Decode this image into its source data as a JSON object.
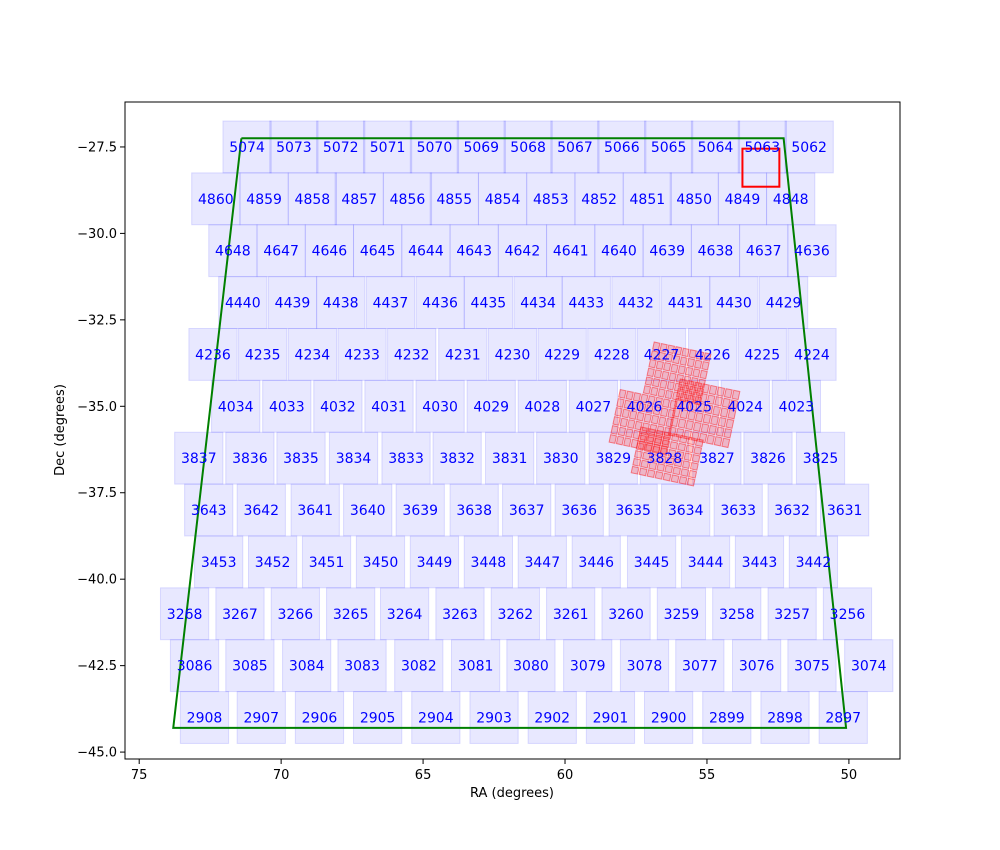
{
  "chart_data": {
    "type": "scatter",
    "title": "",
    "xlabel": "RA (degrees)",
    "ylabel": "Dec (degrees)",
    "xlim": [
      75.5,
      48.2
    ],
    "ylim": [
      -45.2,
      -26.2
    ],
    "xticks": [
      75,
      70,
      65,
      60,
      55,
      50
    ],
    "yticks": [
      -27.5,
      -30.0,
      -32.5,
      -35.0,
      -37.5,
      -40.0,
      -42.5,
      -45.0
    ],
    "colors": {
      "tile": "#0000ff",
      "footprint": "#008000",
      "highlight": "#ff0000"
    },
    "tile_size": {
      "ra": 1.7,
      "dec": 1.5
    },
    "rows": [
      {
        "dec": -27.5,
        "tiles": [
          [
            "5074",
            71.2
          ],
          [
            "5073",
            69.55
          ],
          [
            "5072",
            67.9
          ],
          [
            "5071",
            66.25
          ],
          [
            "5070",
            64.6
          ],
          [
            "5069",
            62.95
          ],
          [
            "5068",
            61.3
          ],
          [
            "5067",
            59.65
          ],
          [
            "5066",
            58.0
          ],
          [
            "5065",
            56.35
          ],
          [
            "5064",
            54.7
          ],
          [
            "5063",
            53.05
          ],
          [
            "5062",
            51.4
          ]
        ]
      },
      {
        "dec": -29.0,
        "tiles": [
          [
            "4860",
            72.3
          ],
          [
            "4859",
            70.6
          ],
          [
            "4858",
            68.9
          ],
          [
            "4857",
            67.25
          ],
          [
            "4856",
            65.55
          ],
          [
            "4855",
            63.9
          ],
          [
            "4854",
            62.2
          ],
          [
            "4853",
            60.5
          ],
          [
            "4852",
            58.8
          ],
          [
            "4851",
            57.1
          ],
          [
            "4850",
            55.45
          ],
          [
            "4849",
            53.75
          ],
          [
            "4848",
            52.05
          ]
        ]
      },
      {
        "dec": -30.5,
        "tiles": [
          [
            "4648",
            71.7
          ],
          [
            "4647",
            70.0
          ],
          [
            "4646",
            68.3
          ],
          [
            "4645",
            66.6
          ],
          [
            "4644",
            64.9
          ],
          [
            "4643",
            63.2
          ],
          [
            "4642",
            61.5
          ],
          [
            "4641",
            59.8
          ],
          [
            "4640",
            58.1
          ],
          [
            "4639",
            56.4
          ],
          [
            "4638",
            54.7
          ],
          [
            "4637",
            53.0
          ],
          [
            "4636",
            51.3
          ]
        ]
      },
      {
        "dec": -32.0,
        "tiles": [
          [
            "4440",
            71.35
          ],
          [
            "4439",
            69.6
          ],
          [
            "4438",
            67.9
          ],
          [
            "4437",
            66.15
          ],
          [
            "4436",
            64.4
          ],
          [
            "4435",
            62.7
          ],
          [
            "4434",
            60.95
          ],
          [
            "4433",
            59.25
          ],
          [
            "4432",
            57.5
          ],
          [
            "4431",
            55.75
          ],
          [
            "4430",
            54.05
          ],
          [
            "4429",
            52.3
          ]
        ]
      },
      {
        "dec": -33.5,
        "tiles": [
          [
            "4236",
            72.4
          ],
          [
            "4235",
            70.65
          ],
          [
            "4234",
            68.9
          ],
          [
            "4233",
            67.15
          ],
          [
            "4232",
            65.4
          ],
          [
            "4231",
            63.6
          ],
          [
            "4230",
            61.85
          ],
          [
            "4229",
            60.1
          ],
          [
            "4228",
            58.35
          ],
          [
            "4227",
            56.6
          ],
          [
            "4226",
            54.8
          ],
          [
            "4225",
            53.05
          ],
          [
            "4224",
            51.3
          ]
        ]
      },
      {
        "dec": -35.0,
        "tiles": [
          [
            "4034",
            71.6
          ],
          [
            "4033",
            69.8
          ],
          [
            "4032",
            68.0
          ],
          [
            "4031",
            66.2
          ],
          [
            "4030",
            64.4
          ],
          [
            "4029",
            62.6
          ],
          [
            "4028",
            60.8
          ],
          [
            "4027",
            59.0
          ],
          [
            "4026",
            57.2
          ],
          [
            "4025",
            55.45
          ],
          [
            "4024",
            53.65
          ],
          [
            "4023",
            51.85
          ]
        ]
      },
      {
        "dec": -36.5,
        "tiles": [
          [
            "3837",
            72.9
          ],
          [
            "3836",
            71.1
          ],
          [
            "3835",
            69.3
          ],
          [
            "3834",
            67.45
          ],
          [
            "3833",
            65.6
          ],
          [
            "3832",
            63.8
          ],
          [
            "3831",
            61.95
          ],
          [
            "3830",
            60.15
          ],
          [
            "3829",
            58.3
          ],
          [
            "3828",
            56.5
          ],
          [
            "3827",
            54.65
          ],
          [
            "3826",
            52.85
          ],
          [
            "3825",
            51.0
          ]
        ]
      },
      {
        "dec": -38.0,
        "tiles": [
          [
            "3643",
            72.55
          ],
          [
            "3642",
            70.7
          ],
          [
            "3641",
            68.8
          ],
          [
            "3640",
            66.95
          ],
          [
            "3639",
            65.1
          ],
          [
            "3638",
            63.2
          ],
          [
            "3637",
            61.35
          ],
          [
            "3636",
            59.5
          ],
          [
            "3635",
            57.6
          ],
          [
            "3634",
            55.75
          ],
          [
            "3633",
            53.9
          ],
          [
            "3632",
            52.0
          ],
          [
            "3631",
            50.15
          ]
        ]
      },
      {
        "dec": -39.5,
        "tiles": [
          [
            "3453",
            72.2
          ],
          [
            "3452",
            70.3
          ],
          [
            "3451",
            68.4
          ],
          [
            "3450",
            66.5
          ],
          [
            "3449",
            64.6
          ],
          [
            "3448",
            62.7
          ],
          [
            "3447",
            60.8
          ],
          [
            "3446",
            58.9
          ],
          [
            "3445",
            56.95
          ],
          [
            "3444",
            55.05
          ],
          [
            "3443",
            53.15
          ],
          [
            "3442",
            51.25
          ]
        ]
      },
      {
        "dec": -41.0,
        "tiles": [
          [
            "3268",
            73.4
          ],
          [
            "3267",
            71.45
          ],
          [
            "3266",
            69.5
          ],
          [
            "3265",
            67.55
          ],
          [
            "3264",
            65.65
          ],
          [
            "3263",
            63.7
          ],
          [
            "3262",
            61.75
          ],
          [
            "3261",
            59.8
          ],
          [
            "3260",
            57.85
          ],
          [
            "3259",
            55.9
          ],
          [
            "3258",
            53.95
          ],
          [
            "3257",
            52.0
          ],
          [
            "3256",
            50.05
          ]
        ]
      },
      {
        "dec": -42.5,
        "tiles": [
          [
            "3086",
            73.05
          ],
          [
            "3085",
            71.1
          ],
          [
            "3084",
            69.1
          ],
          [
            "3083",
            67.15
          ],
          [
            "3082",
            65.15
          ],
          [
            "3081",
            63.15
          ],
          [
            "3080",
            61.2
          ],
          [
            "3079",
            59.2
          ],
          [
            "3078",
            57.2
          ],
          [
            "3077",
            55.25
          ],
          [
            "3076",
            53.25
          ],
          [
            "3075",
            51.3
          ],
          [
            "3074",
            49.3
          ]
        ]
      },
      {
        "dec": -44.0,
        "tiles": [
          [
            "2908",
            72.7
          ],
          [
            "2907",
            70.7
          ],
          [
            "2906",
            68.65
          ],
          [
            "2905",
            66.6
          ],
          [
            "2904",
            64.55
          ],
          [
            "2903",
            62.5
          ],
          [
            "2902",
            60.45
          ],
          [
            "2901",
            58.4
          ],
          [
            "2900",
            56.35
          ],
          [
            "2899",
            54.3
          ],
          [
            "2898",
            52.25
          ],
          [
            "2897",
            50.2
          ]
        ]
      }
    ],
    "footprint": [
      [
        71.4,
        -27.25
      ],
      [
        52.3,
        -27.25
      ],
      [
        50.1,
        -44.3
      ],
      [
        73.8,
        -44.3
      ],
      [
        71.4,
        -27.25
      ]
    ],
    "highlight_box": {
      "ra": [
        53.75,
        52.45
      ],
      "dec": [
        -27.55,
        -28.65
      ]
    },
    "ccd_fields": [
      {
        "center": [
          56.05,
          -34.05
        ],
        "width": 2.1,
        "height": 1.55,
        "angle": 12
      },
      {
        "center": [
          55.1,
          -35.2
        ],
        "width": 2.2,
        "height": 1.7,
        "angle": 12
      },
      {
        "center": [
          57.25,
          -35.45
        ],
        "width": 2.1,
        "height": 1.6,
        "angle": 12
      },
      {
        "center": [
          56.4,
          -36.45
        ],
        "width": 2.3,
        "height": 1.4,
        "angle": 12
      }
    ]
  }
}
